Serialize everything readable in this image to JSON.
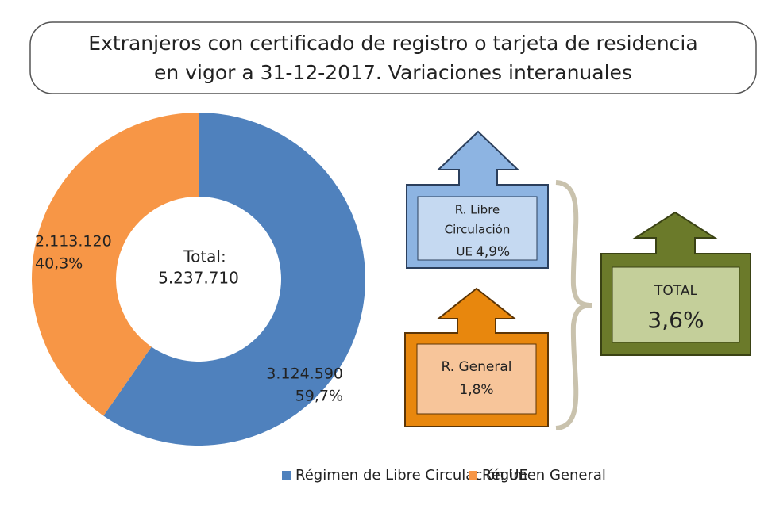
{
  "chart_data": {
    "type": "donut",
    "title": [
      "Extranjeros con certificado de registro o tarjeta de residencia",
      "en vigor a 31-12-2017. Variaciones interanuales"
    ],
    "categories": [
      "Régimen de Libre Circulación UE",
      "Régimen General"
    ],
    "values": [
      3124590,
      2113120
    ],
    "value_labels": [
      "3.124.590",
      "2.113.120"
    ],
    "share_labels": [
      "59,7%",
      "40,3%"
    ],
    "colors": [
      "#4f81bd",
      "#f79646"
    ],
    "center_label": "Total:",
    "total_label": "5.237.710",
    "variations": [
      {
        "label_lines": [
          "R. Libre",
          "Circulación",
          "UE"
        ],
        "value_label": "4,9%"
      },
      {
        "label_lines": [
          "R. General"
        ],
        "value_label": "1,8%"
      },
      {
        "label_lines": [
          "TOTAL"
        ],
        "value_label": "3,6%"
      }
    ]
  }
}
